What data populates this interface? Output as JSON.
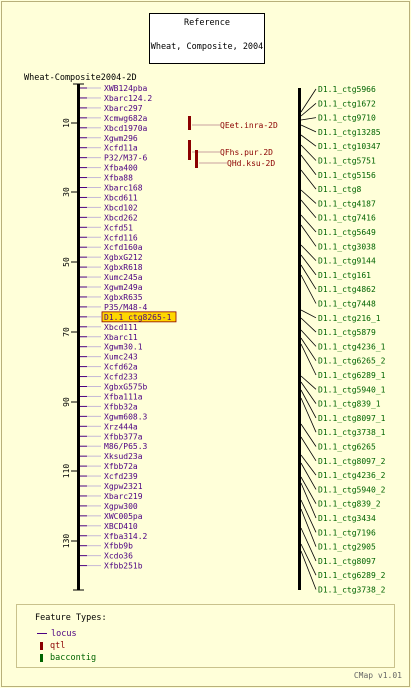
{
  "reference": {
    "title": "Reference",
    "subtitle": "Wheat, Composite, 2004"
  },
  "map": {
    "title": "Wheat-Composite2004-2D",
    "ticks": [
      "10",
      "30",
      "50",
      "70",
      "90",
      "110",
      "130"
    ],
    "markers": [
      "XWB124pba",
      "Xbarc124.2",
      "Xbarc297",
      "Xcmwg682a",
      "Xbcd1970a",
      "Xgwm296",
      "Xcfd11a",
      "P32/M37-6",
      "Xfba400",
      "Xfba88",
      "Xbarc168",
      "Xbcd611",
      "Xbcd102",
      "Xbcd262",
      "Xcfd51",
      "Xcfd116",
      "Xcfd160a",
      "XgbxG212",
      "XgbxR618",
      "Xumc245a",
      "Xgwm249a",
      "XgbxR635",
      "P35/M48-4",
      "D1.1_ctg8265-1",
      "Xbcd111",
      "Xbarc11",
      "Xgwm30.1",
      "Xumc243",
      "Xcfd62a",
      "Xcfd233",
      "XgbxG575b",
      "Xfba111a",
      "Xfbb32a",
      "Xgwm608.3",
      "Xrz444a",
      "Xfbb377a",
      "M86/P65.3",
      "Xksud23a",
      "Xfbb72a",
      "Xcfd239",
      "Xgpw2321",
      "Xbarc219",
      "Xgpw300",
      "XWC005pa",
      "XBCD410",
      "Xfba314.2",
      "Xfbb9b",
      "Xcdo36",
      "Xfbb251b"
    ],
    "highlighted": "D1.1_ctg8265-1"
  },
  "qtls": [
    "QEet.inra-2D",
    "QFhs.pur.2D",
    "QHd.ksu-2D"
  ],
  "contigs": [
    "D1.1_ctg5966",
    "D1.1_ctg1672",
    "D1.1_ctg9710",
    "D1.1_ctg13285",
    "D1.1_ctg10347",
    "D1.1_ctg5751",
    "D1.1_ctg5156",
    "D1.1_ctg8",
    "D1.1_ctg4187",
    "D1.1_ctg7416",
    "D1.1_ctg5649",
    "D1.1_ctg3038",
    "D1.1_ctg9144",
    "D1.1_ctg161",
    "D1.1_ctg4862",
    "D1.1_ctg7448",
    "D1.1_ctg216_1",
    "D1.1_ctg5879",
    "D1.1_ctg4236_1",
    "D1.1_ctg6265_2",
    "D1.1_ctg6289_1",
    "D1.1_ctg5940_1",
    "D1.1_ctg839_1",
    "D1.1_ctg8097_1",
    "D1.1_ctg3738_1",
    "D1.1_ctg6265",
    "D1.1_ctg8097_2",
    "D1.1_ctg4236_2",
    "D1.1_ctg5940_2",
    "D1.1_ctg839_2",
    "D1.1_ctg3434",
    "D1.1_ctg7196",
    "D1.1_ctg2905",
    "D1.1_ctg8097",
    "D1.1_ctg6289_2",
    "D1.1_ctg3738_2"
  ],
  "legend": {
    "title": "Feature Types:",
    "locus": "locus",
    "qtl": "qtl",
    "baccontig": "baccontig"
  },
  "colors": {
    "locus": "#4b0082",
    "qtl": "#8b0000",
    "contig": "#006400",
    "highlight": "#ffd700"
  },
  "footer": "CMap v1.01"
}
